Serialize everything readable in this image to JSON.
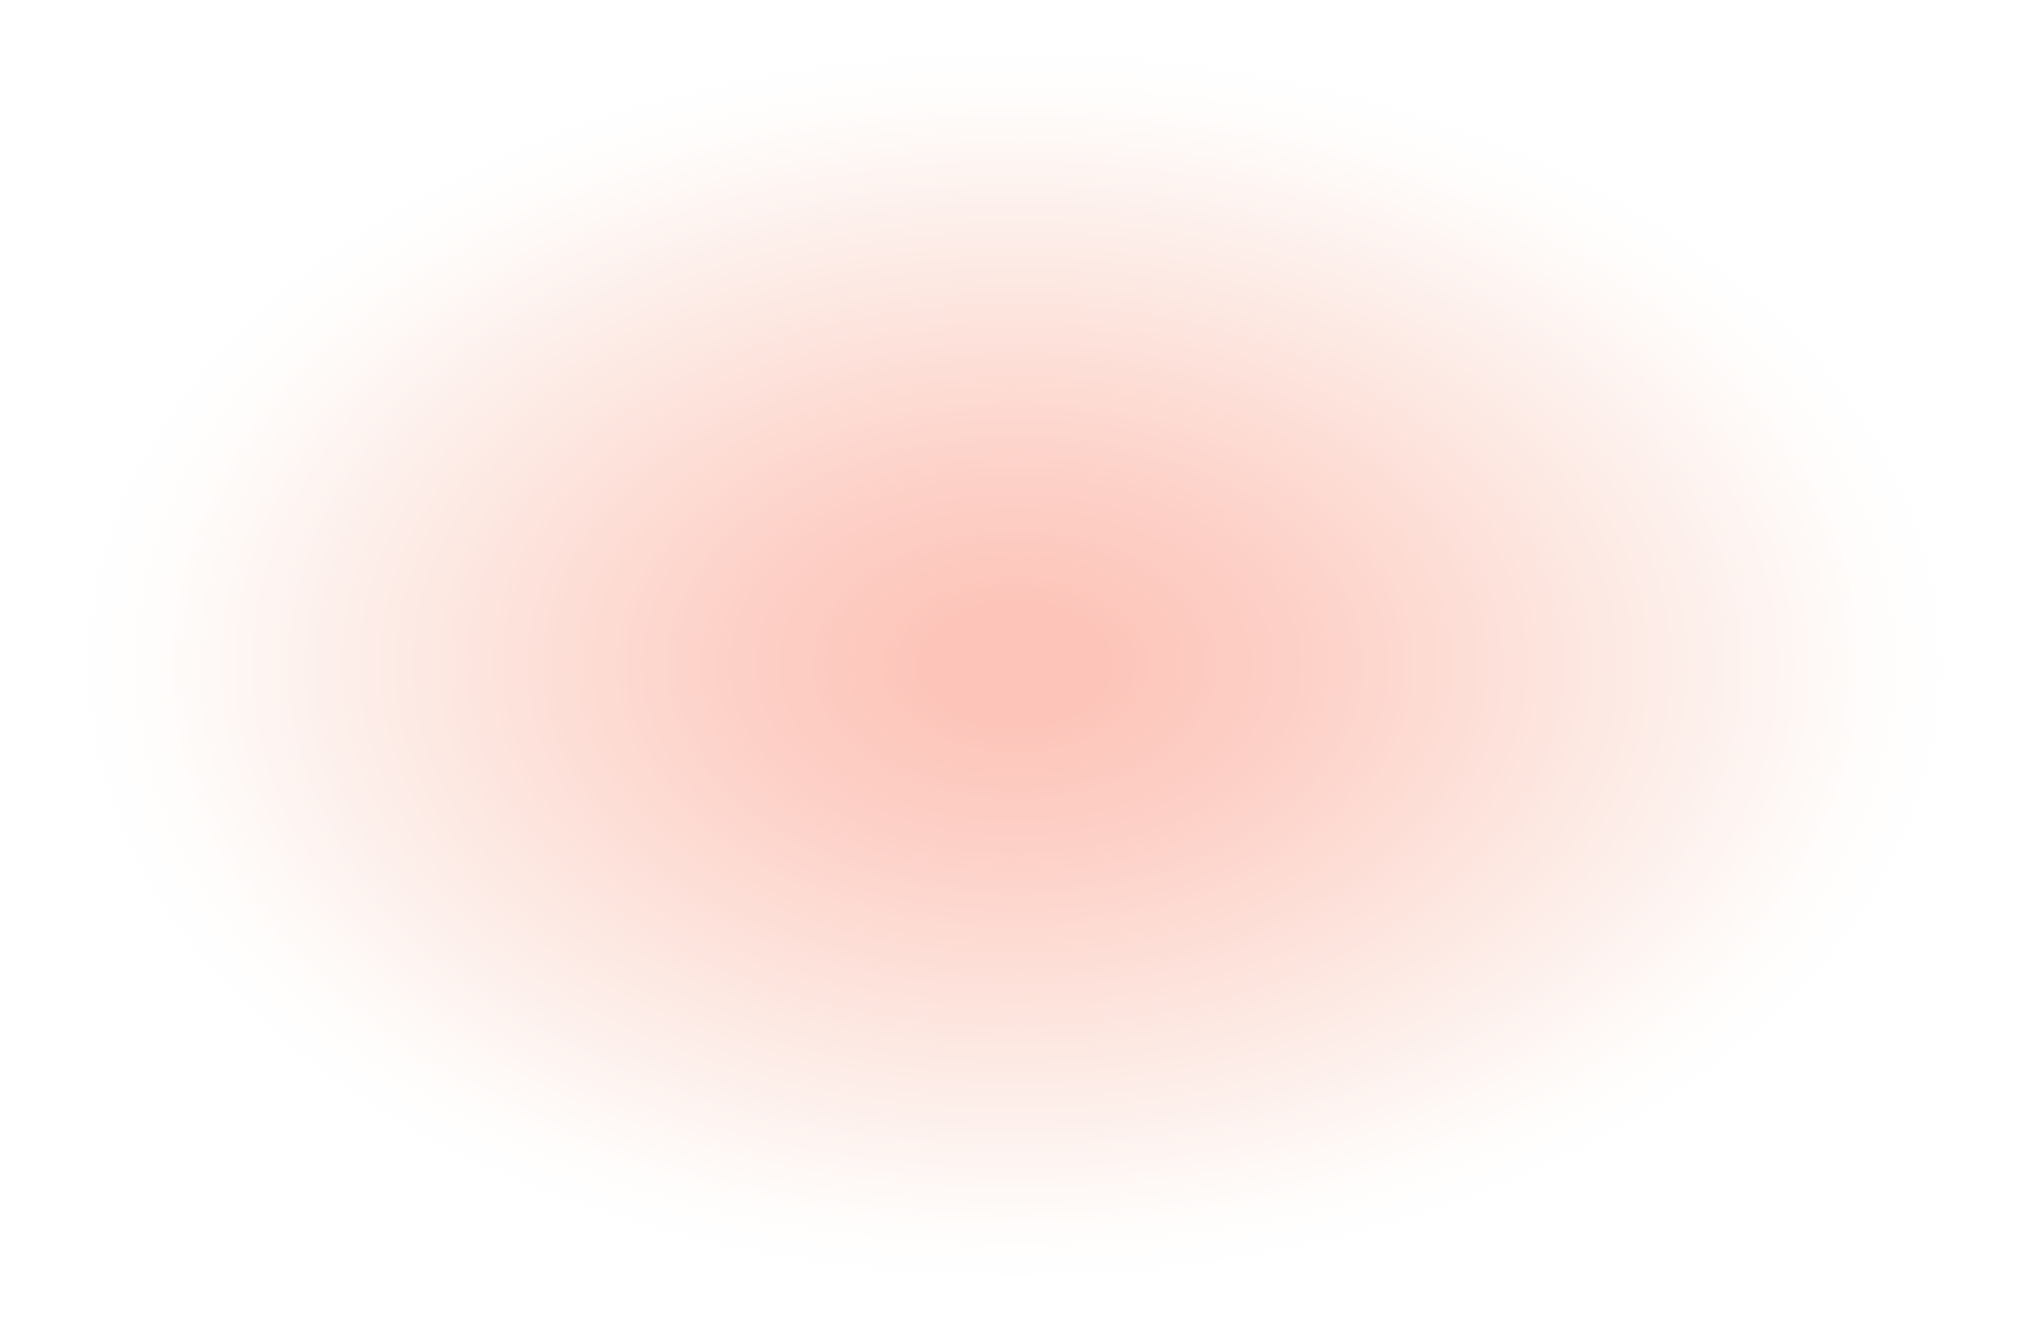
{
  "background": {
    "base_color": "#ffffff",
    "glow_center_color": "#fdc4b9",
    "glow_mid_color": "#fde3dc",
    "glow_edge_color": "#fffdfc"
  }
}
